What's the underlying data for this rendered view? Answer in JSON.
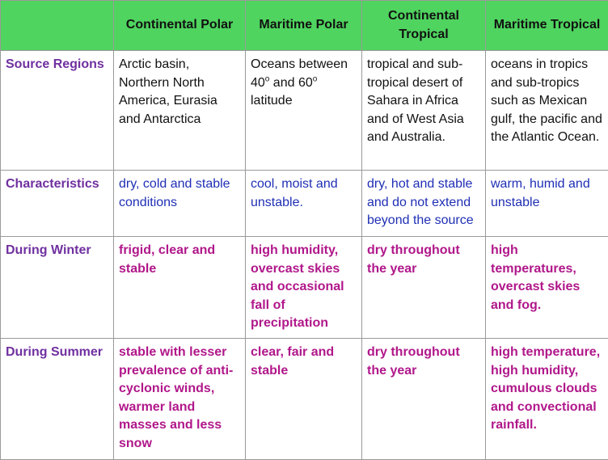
{
  "headers": [
    "",
    "Continental Polar",
    "Maritime Polar",
    "Continental Tropical",
    "Maritime Tropical"
  ],
  "rows": [
    {
      "label": "Source Regions",
      "cells": [
        "Arctic basin, Northern North America, Eurasia and Antarctica",
        "",
        "tropical and sub-tropical desert of Sahara in Africa and of West Asia and Australia.",
        "oceans in tropics and sub-tropics such as Mexican gulf, the pacific and the Atlantic Ocean."
      ],
      "mp_source": {
        "a": "Oceans between 40",
        "deg1": "o",
        "b": " and 60",
        "deg2": "o",
        "c": " latitude"
      }
    },
    {
      "label": "Characteristics",
      "cells": [
        "dry, cold and stable conditions",
        "cool, moist and unstable.",
        "dry, hot and stable and do not extend beyond the source",
        "warm, humid and unstable"
      ]
    },
    {
      "label": "During Winter",
      "cells": [
        "frigid, clear and stable",
        "high humidity, overcast skies and occasional fall of precipitation",
        "dry throughout the year",
        "high temperatures, overcast skies and fog."
      ]
    },
    {
      "label": "During Summer",
      "cells": [
        "stable with lesser prevalence of anti-cyclonic winds, warmer land masses and less snow",
        "clear, fair and stable",
        "dry throughout the year",
        "high temperature, high humidity, cumulous clouds and convectional rainfall."
      ]
    }
  ],
  "colors": {
    "header_bg": "#4fd45f",
    "row_label": "#7030a0",
    "characteristics": "#1f2fb5",
    "seasonal": "#b0178a"
  }
}
